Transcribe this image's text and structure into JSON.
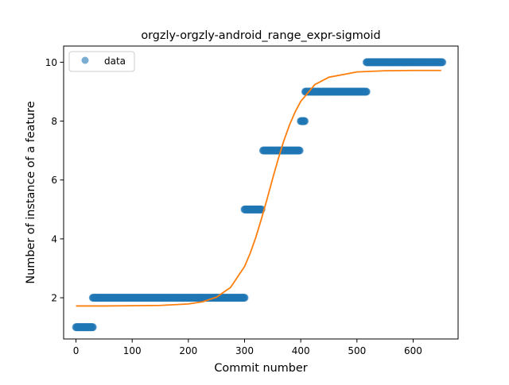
{
  "chart_data": {
    "type": "scatter",
    "title": "orgzly-orgzly-android_range_expr-sigmoid",
    "xlabel": "Commit number",
    "ylabel": "Number of instance of a feature",
    "xlim": [
      -22,
      680
    ],
    "ylim": [
      0.6,
      10.55
    ],
    "xticks": [
      0,
      100,
      200,
      300,
      400,
      500,
      600
    ],
    "yticks": [
      2,
      4,
      6,
      8,
      10
    ],
    "grid": false,
    "legend": {
      "position": "upper left",
      "entries": [
        "data"
      ]
    },
    "colors": {
      "data": "#1f77b4",
      "fit": "#ff7f0e"
    },
    "data_segments": [
      {
        "x_start": 0,
        "x_end": 30,
        "y": 1
      },
      {
        "x_start": 30,
        "x_end": 300,
        "y": 2
      },
      {
        "x_start": 300,
        "x_end": 330,
        "y": 5
      },
      {
        "x_start": 333,
        "x_end": 398,
        "y": 7
      },
      {
        "x_start": 400,
        "x_end": 407,
        "y": 8
      },
      {
        "x_start": 408,
        "x_end": 517,
        "y": 9
      },
      {
        "x_start": 517,
        "x_end": 652,
        "y": 10
      }
    ],
    "series": [
      {
        "name": "data",
        "kind": "scatter"
      },
      {
        "kind": "line",
        "x": [
          0,
          50,
          100,
          150,
          200,
          225,
          250,
          275,
          300,
          310,
          320,
          330,
          340,
          350,
          360,
          370,
          380,
          390,
          400,
          425,
          450,
          500,
          550,
          600,
          650
        ],
        "y": [
          1.72,
          1.72,
          1.73,
          1.74,
          1.79,
          1.86,
          2.02,
          2.35,
          3.06,
          3.51,
          4.05,
          4.68,
          5.35,
          6.05,
          6.72,
          7.34,
          7.87,
          8.31,
          8.67,
          9.24,
          9.49,
          9.67,
          9.71,
          9.72,
          9.72
        ]
      }
    ]
  }
}
